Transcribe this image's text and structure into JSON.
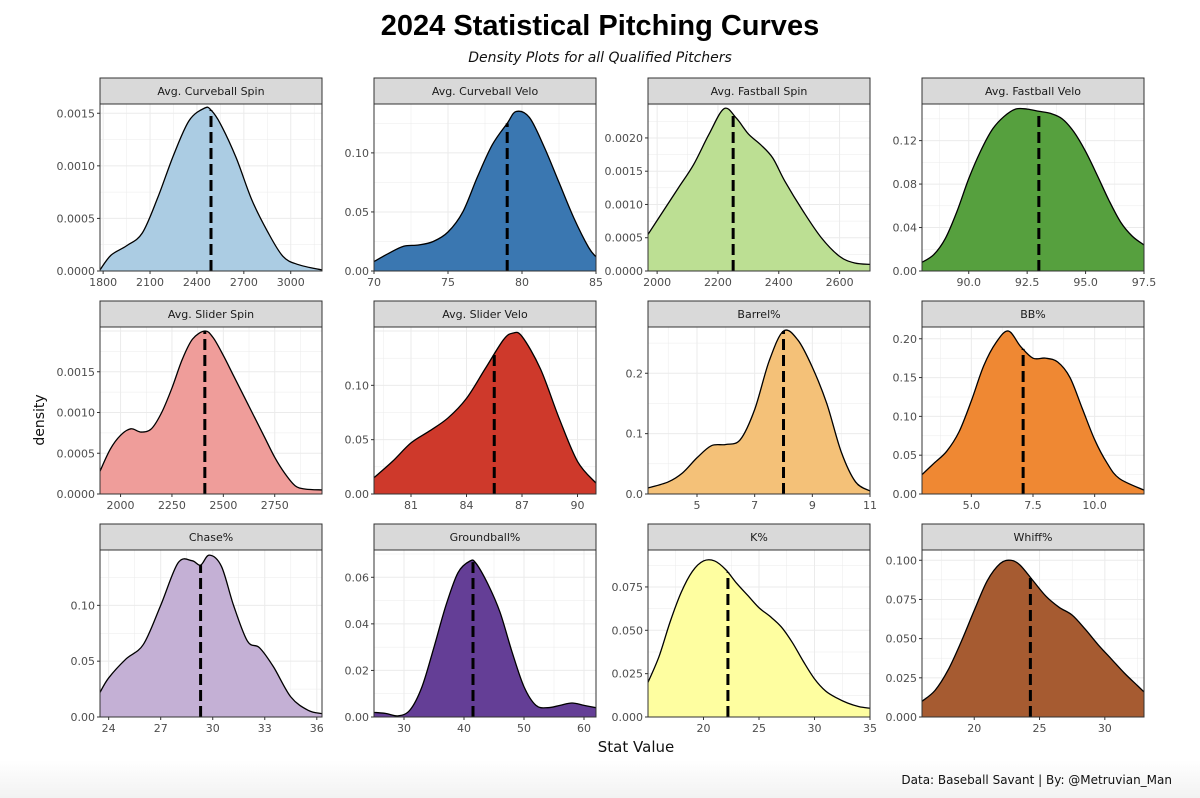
{
  "title": "2024 Statistical Pitching Curves",
  "subtitle": "Density Plots for all Qualified Pitchers",
  "ylabel": "density",
  "xlabel": "Stat Value",
  "caption": "Data: Baseball Savant | By: @Metruvian_Man",
  "chart_data": [
    {
      "type": "area",
      "title": "Avg. Curveball Spin",
      "color": "#abcce3",
      "xlim": [
        1780,
        3200
      ],
      "ylim": [
        0,
        0.00155
      ],
      "xticks": [
        1800,
        2100,
        2400,
        2700,
        3000
      ],
      "xtick_labels": [
        "1800",
        "2100",
        "2400",
        "2700",
        "3000"
      ],
      "yticks": [
        0,
        0.0005,
        0.001,
        0.0015
      ],
      "ytick_labels": [
        "0.0000",
        "0.0005",
        "0.0010",
        "0.0015"
      ],
      "mean": 2490,
      "x": [
        1780,
        1850,
        1950,
        2050,
        2150,
        2250,
        2350,
        2450,
        2490,
        2550,
        2650,
        2750,
        2850,
        2950,
        3050,
        3200
      ],
      "y": [
        1e-05,
        0.00015,
        0.00024,
        0.00036,
        0.0007,
        0.0011,
        0.00143,
        0.00155,
        0.00153,
        0.0014,
        0.00108,
        0.00068,
        0.00038,
        0.00014,
        6e-05,
        1e-05
      ]
    },
    {
      "type": "area",
      "title": "Avg. Curveball Velo",
      "color": "#3a77b1",
      "xlim": [
        70,
        85
      ],
      "ylim": [
        0,
        0.138
      ],
      "xticks": [
        70,
        75,
        80,
        85
      ],
      "xtick_labels": [
        "70",
        "75",
        "80",
        "85"
      ],
      "yticks": [
        0,
        0.05,
        0.1
      ],
      "ytick_labels": [
        "0.00",
        "0.05",
        "0.10"
      ],
      "mean": 79,
      "x": [
        70,
        71,
        72,
        73,
        74,
        75,
        76,
        77,
        78,
        79,
        79.6,
        80.5,
        81.5,
        82.5,
        83.5,
        84.5,
        85
      ],
      "y": [
        0.008,
        0.015,
        0.021,
        0.022,
        0.025,
        0.033,
        0.05,
        0.08,
        0.107,
        0.125,
        0.135,
        0.13,
        0.105,
        0.075,
        0.045,
        0.02,
        0.012
      ]
    },
    {
      "type": "area",
      "title": "Avg. Fastball Spin",
      "color": "#bcdf93",
      "xlim": [
        1970,
        2700
      ],
      "ylim": [
        0,
        0.00245
      ],
      "xticks": [
        2000,
        2200,
        2400,
        2600
      ],
      "xtick_labels": [
        "2000",
        "2200",
        "2400",
        "2600"
      ],
      "yticks": [
        0,
        0.0005,
        0.001,
        0.0015,
        0.002
      ],
      "ytick_labels": [
        "0.0000",
        "0.0005",
        "0.0010",
        "0.0015",
        "0.0020"
      ],
      "mean": 2250,
      "x": [
        1970,
        2020,
        2070,
        2120,
        2170,
        2220,
        2260,
        2300,
        2340,
        2380,
        2420,
        2480,
        2540,
        2600,
        2650,
        2700
      ],
      "y": [
        0.00055,
        0.0009,
        0.00125,
        0.0016,
        0.00205,
        0.00244,
        0.0023,
        0.00206,
        0.0019,
        0.0017,
        0.00135,
        0.0009,
        0.0005,
        0.00022,
        0.00012,
        0.0001
      ]
    },
    {
      "type": "area",
      "title": "Avg. Fastball Velo",
      "color": "#56a03e",
      "xlim": [
        88,
        97.5
      ],
      "ylim": [
        0,
        0.15
      ],
      "xticks": [
        90,
        92.5,
        95,
        97.5
      ],
      "xtick_labels": [
        "90.0",
        "92.5",
        "95.0",
        "97.5"
      ],
      "yticks": [
        0,
        0.04,
        0.08,
        0.12
      ],
      "ytick_labels": [
        "0.00",
        "0.04",
        "0.08",
        "0.12"
      ],
      "mean": 93,
      "x": [
        88,
        88.5,
        89,
        89.5,
        90,
        90.5,
        91,
        91.5,
        92,
        92.5,
        93,
        93.5,
        94,
        94.5,
        95,
        95.5,
        96,
        96.5,
        97,
        97.5
      ],
      "y": [
        0.008,
        0.015,
        0.03,
        0.055,
        0.085,
        0.11,
        0.13,
        0.142,
        0.149,
        0.149,
        0.147,
        0.145,
        0.14,
        0.128,
        0.11,
        0.088,
        0.065,
        0.045,
        0.032,
        0.024
      ]
    },
    {
      "type": "area",
      "title": "Avg. Slider Spin",
      "color": "#ef9d9a",
      "xlim": [
        1900,
        2980
      ],
      "ylim": [
        0,
        0.002
      ],
      "xticks": [
        2000,
        2250,
        2500,
        2750
      ],
      "xtick_labels": [
        "2000",
        "2250",
        "2500",
        "2750"
      ],
      "yticks": [
        0,
        0.0005,
        0.001,
        0.0015
      ],
      "ytick_labels": [
        "0.0000",
        "0.0005",
        "0.0010",
        "0.0015"
      ],
      "mean": 2410,
      "x": [
        1900,
        1950,
        2000,
        2050,
        2100,
        2150,
        2200,
        2250,
        2300,
        2350,
        2410,
        2450,
        2500,
        2550,
        2600,
        2650,
        2700,
        2750,
        2800,
        2850,
        2900,
        2980
      ],
      "y": [
        0.00028,
        0.00055,
        0.00072,
        0.0008,
        0.00076,
        0.0008,
        0.001,
        0.0013,
        0.00165,
        0.0019,
        0.002,
        0.00192,
        0.0017,
        0.00145,
        0.0012,
        0.00095,
        0.0007,
        0.00045,
        0.00025,
        0.0001,
        6e-05,
        5e-05
      ]
    },
    {
      "type": "area",
      "title": "Avg. Slider Velo",
      "color": "#ce392b",
      "xlim": [
        79,
        91
      ],
      "ylim": [
        0,
        0.15
      ],
      "xticks": [
        81,
        84,
        87,
        90
      ],
      "xtick_labels": [
        "81",
        "84",
        "87",
        "90"
      ],
      "yticks": [
        0,
        0.05,
        0.1
      ],
      "ytick_labels": [
        "0.00",
        "0.05",
        "0.10"
      ],
      "mean": 85.5,
      "x": [
        79,
        80,
        81,
        82,
        83,
        84,
        85,
        86,
        86.5,
        87,
        88,
        89,
        90,
        91
      ],
      "y": [
        0.015,
        0.03,
        0.047,
        0.058,
        0.07,
        0.088,
        0.115,
        0.142,
        0.148,
        0.145,
        0.115,
        0.07,
        0.03,
        0.01
      ]
    },
    {
      "type": "area",
      "title": "Barrel%",
      "color": "#f4c178",
      "xlim": [
        3.3,
        11
      ],
      "ylim": [
        0,
        0.27
      ],
      "xticks": [
        5,
        7,
        9,
        11
      ],
      "xtick_labels": [
        "5",
        "7",
        "9",
        "11"
      ],
      "yticks": [
        0,
        0.1,
        0.2
      ],
      "ytick_labels": [
        "0.0",
        "0.1",
        "0.2"
      ],
      "mean": 8,
      "x": [
        3.3,
        4,
        4.5,
        5,
        5.5,
        6,
        6.5,
        7,
        7.5,
        8,
        8.5,
        9,
        9.5,
        10,
        10.5,
        11
      ],
      "y": [
        0.01,
        0.02,
        0.035,
        0.06,
        0.08,
        0.082,
        0.09,
        0.14,
        0.22,
        0.27,
        0.255,
        0.21,
        0.15,
        0.07,
        0.02,
        0.005
      ]
    },
    {
      "type": "area",
      "title": "BB%",
      "color": "#ef8833",
      "xlim": [
        3,
        12
      ],
      "ylim": [
        0,
        0.21
      ],
      "xticks": [
        5,
        7.5,
        10
      ],
      "xtick_labels": [
        "5.0",
        "7.5",
        "10.0"
      ],
      "yticks": [
        0,
        0.05,
        0.1,
        0.15,
        0.2
      ],
      "ytick_labels": [
        "0.00",
        "0.05",
        "0.10",
        "0.15",
        "0.20"
      ],
      "mean": 7.1,
      "x": [
        3,
        3.5,
        4,
        4.5,
        5,
        5.5,
        6,
        6.5,
        7,
        7.5,
        8,
        8.5,
        9,
        9.5,
        10,
        10.5,
        11,
        12
      ],
      "y": [
        0.025,
        0.04,
        0.055,
        0.08,
        0.12,
        0.165,
        0.195,
        0.21,
        0.19,
        0.175,
        0.175,
        0.17,
        0.15,
        0.11,
        0.07,
        0.04,
        0.02,
        0.005
      ]
    },
    {
      "type": "area",
      "title": "Chase%",
      "color": "#c4b0d5",
      "xlim": [
        23.5,
        36.3
      ],
      "ylim": [
        0,
        0.146
      ],
      "xticks": [
        24,
        27,
        30,
        33,
        36
      ],
      "xtick_labels": [
        "24",
        "27",
        "30",
        "33",
        "36"
      ],
      "yticks": [
        0,
        0.05,
        0.1
      ],
      "ytick_labels": [
        "0.00",
        "0.05",
        "0.10"
      ],
      "mean": 29.3,
      "x": [
        23.5,
        24,
        25,
        26,
        27,
        28,
        28.8,
        29.3,
        29.8,
        30.5,
        31.2,
        32,
        32.7,
        33.5,
        34.5,
        35.5,
        36.3
      ],
      "y": [
        0.022,
        0.035,
        0.052,
        0.065,
        0.1,
        0.138,
        0.14,
        0.136,
        0.145,
        0.135,
        0.1,
        0.068,
        0.062,
        0.045,
        0.018,
        0.006,
        0.003
      ]
    },
    {
      "type": "area",
      "title": "Groundball%",
      "color": "#643e96",
      "xlim": [
        25,
        62
      ],
      "ylim": [
        0,
        0.07
      ],
      "xticks": [
        30,
        40,
        50,
        60
      ],
      "xtick_labels": [
        "30",
        "40",
        "50",
        "60"
      ],
      "yticks": [
        0,
        0.02,
        0.04,
        0.06
      ],
      "ytick_labels": [
        "0.00",
        "0.02",
        "0.04",
        "0.06"
      ],
      "mean": 41.5,
      "x": [
        25,
        27,
        29,
        31,
        33,
        35,
        37,
        39,
        41,
        42,
        44,
        46,
        48,
        50,
        52,
        54,
        56,
        58,
        60,
        62
      ],
      "y": [
        0.002,
        0.0015,
        0.0005,
        0.003,
        0.013,
        0.03,
        0.048,
        0.062,
        0.067,
        0.066,
        0.057,
        0.045,
        0.028,
        0.013,
        0.005,
        0.004,
        0.005,
        0.006,
        0.005,
        0.004
      ]
    },
    {
      "type": "area",
      "title": "K%",
      "color": "#fefea0",
      "xlim": [
        15,
        35
      ],
      "ylim": [
        0,
        0.094
      ],
      "xticks": [
        20,
        25,
        30,
        35
      ],
      "xtick_labels": [
        "20",
        "25",
        "30",
        "35"
      ],
      "yticks": [
        0,
        0.025,
        0.05,
        0.075
      ],
      "ytick_labels": [
        "0.000",
        "0.025",
        "0.050",
        "0.075"
      ],
      "mean": 22.2,
      "x": [
        15,
        16,
        17,
        18,
        19,
        20,
        21,
        22,
        23,
        24,
        25,
        26,
        27,
        28,
        29,
        30,
        31,
        32,
        33,
        34,
        35
      ],
      "y": [
        0.02,
        0.035,
        0.055,
        0.072,
        0.084,
        0.09,
        0.09,
        0.085,
        0.077,
        0.07,
        0.063,
        0.058,
        0.052,
        0.043,
        0.032,
        0.022,
        0.015,
        0.011,
        0.008,
        0.006,
        0.005
      ]
    },
    {
      "type": "area",
      "title": "Whiff%",
      "color": "#a65b31",
      "xlim": [
        16,
        33
      ],
      "ylim": [
        0,
        0.104
      ],
      "xticks": [
        20,
        25,
        30
      ],
      "xtick_labels": [
        "20",
        "25",
        "30"
      ],
      "yticks": [
        0,
        0.025,
        0.05,
        0.075,
        0.1
      ],
      "ytick_labels": [
        "0.000",
        "0.025",
        "0.050",
        "0.075",
        "0.100"
      ],
      "mean": 24.3,
      "x": [
        16,
        17,
        18,
        19,
        20,
        21,
        22,
        22.8,
        23.5,
        24.5,
        25.5,
        26.5,
        27.5,
        28.5,
        29.5,
        30.5,
        31.5,
        32.5,
        33
      ],
      "y": [
        0.01,
        0.017,
        0.03,
        0.048,
        0.068,
        0.087,
        0.098,
        0.1,
        0.097,
        0.087,
        0.077,
        0.07,
        0.065,
        0.056,
        0.046,
        0.037,
        0.028,
        0.02,
        0.016
      ]
    }
  ]
}
